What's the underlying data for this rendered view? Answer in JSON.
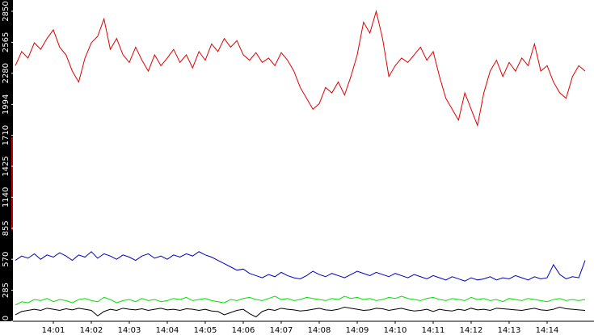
{
  "chart_data": {
    "type": "line",
    "categories": [
      null,
      null,
      null,
      null,
      null,
      null,
      "14:01",
      null,
      null,
      null,
      null,
      null,
      "14:02",
      null,
      null,
      null,
      null,
      null,
      "14:03",
      null,
      null,
      null,
      null,
      null,
      "14:04",
      null,
      null,
      null,
      null,
      null,
      "14:05",
      null,
      null,
      null,
      null,
      null,
      "14:06",
      null,
      null,
      null,
      null,
      null,
      "14:07",
      null,
      null,
      null,
      null,
      null,
      "14:08",
      null,
      null,
      null,
      null,
      null,
      "14:09",
      null,
      null,
      null,
      null,
      null,
      "14:10",
      null,
      null,
      null,
      null,
      null,
      "14:11",
      null,
      null,
      null,
      null,
      null,
      "14:12",
      null,
      null,
      null,
      null,
      null,
      "14:13",
      null,
      null,
      null,
      null,
      null,
      "14:14",
      null,
      null,
      null,
      null,
      null,
      null
    ],
    "series": [
      {
        "color": "#e00000",
        "values": [
          2350,
          2480,
          2420,
          2560,
          2500,
          2600,
          2680,
          2520,
          2450,
          2300,
          2200,
          2420,
          2560,
          2620,
          2780,
          2500,
          2600,
          2450,
          2380,
          2520,
          2400,
          2300,
          2450,
          2350,
          2420,
          2500,
          2380,
          2450,
          2330,
          2480,
          2400,
          2550,
          2480,
          2600,
          2520,
          2580,
          2450,
          2400,
          2470,
          2380,
          2420,
          2350,
          2470,
          2400,
          2300,
          2150,
          2050,
          1950,
          2000,
          2150,
          2100,
          2200,
          2080,
          2250,
          2450,
          2750,
          2650,
          2850,
          2600,
          2250,
          2350,
          2420,
          2380,
          2450,
          2520,
          2400,
          2480,
          2250,
          2050,
          1950,
          1850,
          2100,
          1950,
          1800,
          2100,
          2300,
          2400,
          2250,
          2380,
          2300,
          2420,
          2350,
          2550,
          2300,
          2350,
          2200,
          2100,
          2050,
          2250,
          2350,
          2300
        ]
      },
      {
        "color": "#0000c0",
        "values": [
          560,
          600,
          580,
          620,
          570,
          610,
          590,
          630,
          600,
          560,
          610,
          590,
          640,
          580,
          620,
          600,
          570,
          610,
          590,
          560,
          600,
          620,
          580,
          600,
          570,
          610,
          590,
          620,
          600,
          640,
          610,
          590,
          560,
          530,
          500,
          470,
          480,
          440,
          420,
          400,
          430,
          410,
          450,
          420,
          400,
          390,
          420,
          460,
          430,
          410,
          440,
          420,
          400,
          430,
          460,
          440,
          420,
          450,
          430,
          410,
          440,
          420,
          400,
          430,
          410,
          390,
          420,
          400,
          380,
          410,
          390,
          370,
          400,
          380,
          390,
          410,
          380,
          400,
          390,
          420,
          400,
          380,
          410,
          390,
          400,
          520,
          430,
          390,
          410,
          400,
          560
        ]
      },
      {
        "color": "#00e000",
        "values": [
          150,
          180,
          170,
          200,
          190,
          210,
          180,
          200,
          190,
          170,
          200,
          210,
          190,
          180,
          220,
          200,
          170,
          190,
          200,
          180,
          210,
          190,
          200,
          180,
          190,
          210,
          200,
          220,
          190,
          200,
          210,
          190,
          180,
          170,
          200,
          190,
          210,
          220,
          200,
          190,
          210,
          230,
          200,
          210,
          190,
          200,
          220,
          210,
          200,
          190,
          210,
          200,
          230,
          210,
          220,
          200,
          210,
          190,
          200,
          220,
          210,
          230,
          210,
          200,
          190,
          210,
          220,
          200,
          190,
          210,
          200,
          190,
          220,
          200,
          210,
          190,
          200,
          180,
          210,
          200,
          190,
          210,
          200,
          190,
          180,
          200,
          210,
          190,
          200,
          190,
          200
        ]
      },
      {
        "color": "#000000",
        "values": [
          60,
          90,
          100,
          110,
          100,
          120,
          110,
          100,
          115,
          105,
          120,
          110,
          100,
          50,
          90,
          110,
          100,
          120,
          110,
          105,
          115,
          100,
          110,
          120,
          105,
          110,
          100,
          115,
          110,
          100,
          110,
          95,
          90,
          60,
          80,
          100,
          110,
          70,
          40,
          90,
          110,
          100,
          120,
          110,
          105,
          95,
          100,
          110,
          120,
          105,
          100,
          110,
          130,
          120,
          110,
          100,
          105,
          120,
          115,
          100,
          110,
          120,
          105,
          95,
          100,
          110,
          90,
          110,
          100,
          95,
          110,
          100,
          120,
          105,
          110,
          100,
          120,
          115,
          110,
          105,
          100,
          110,
          120,
          105,
          100,
          110,
          130,
          115,
          110,
          105,
          100
        ]
      }
    ],
    "ylim": [
      0,
      2850
    ],
    "yticks": [
      0,
      285,
      570,
      855,
      1140,
      1425,
      1710,
      1994,
      2280,
      2565,
      2850
    ]
  }
}
